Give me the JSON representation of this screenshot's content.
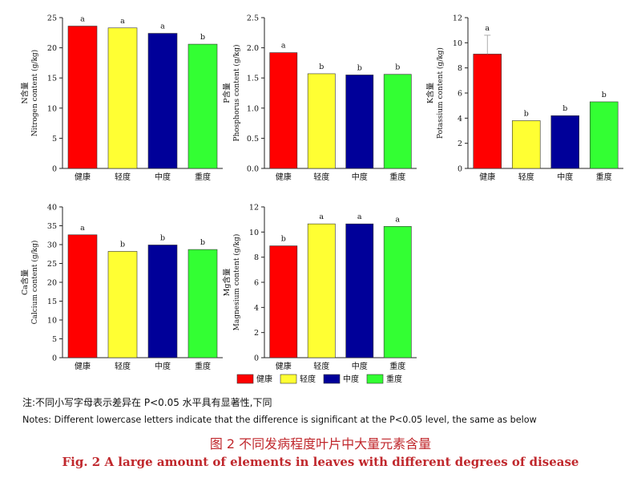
{
  "chart_data": [
    {
      "type": "bar",
      "ylabel": "N含量",
      "ylabel_en": "Nitrogen content (g/kg)",
      "categories": [
        "健康",
        "轻度",
        "中度",
        "重度"
      ],
      "values": [
        23.6,
        23.3,
        22.4,
        20.6
      ],
      "sig_letters": [
        "a",
        "a",
        "a",
        "b"
      ],
      "ylim": [
        0,
        25
      ],
      "yticks": [
        0,
        5,
        10,
        15,
        20,
        25
      ],
      "error_bars": [
        0,
        0,
        0,
        0
      ]
    },
    {
      "type": "bar",
      "ylabel": "P含量",
      "ylabel_en": "Phosphorus content (g/kg)",
      "categories": [
        "健康",
        "轻度",
        "中度",
        "重度"
      ],
      "values": [
        1.92,
        1.57,
        1.55,
        1.56
      ],
      "sig_letters": [
        "a",
        "b",
        "b",
        "b"
      ],
      "ylim": [
        0,
        2.5
      ],
      "yticks": [
        0.0,
        0.5,
        1.0,
        1.5,
        2.0,
        2.5
      ],
      "error_bars": [
        0,
        0,
        0,
        0
      ]
    },
    {
      "type": "bar",
      "ylabel": "K含量",
      "ylabel_en": "Potassium content (g/kg)",
      "categories": [
        "健康",
        "轻度",
        "中度",
        "重度"
      ],
      "values": [
        9.1,
        3.8,
        4.2,
        5.3
      ],
      "sig_letters": [
        "a",
        "b",
        "b",
        "b"
      ],
      "ylim": [
        0,
        12
      ],
      "yticks": [
        0,
        2,
        4,
        6,
        8,
        10,
        12
      ],
      "error_bars": [
        1.5,
        0,
        0,
        0
      ]
    },
    {
      "type": "bar",
      "ylabel": "Ca含量",
      "ylabel_en": "Calcium content (g/kg)",
      "categories": [
        "健康",
        "轻度",
        "中度",
        "重度"
      ],
      "values": [
        32.6,
        28.2,
        29.9,
        28.7
      ],
      "sig_letters": [
        "a",
        "b",
        "b",
        "b"
      ],
      "ylim": [
        0,
        40
      ],
      "yticks": [
        0,
        5,
        10,
        15,
        20,
        25,
        30,
        35,
        40
      ],
      "error_bars": [
        0,
        0,
        0,
        0
      ]
    },
    {
      "type": "bar",
      "ylabel": "Mg含量",
      "ylabel_en": "Magnesium content (g/kg)",
      "categories": [
        "健康",
        "轻度",
        "中度",
        "重度"
      ],
      "values": [
        8.9,
        10.65,
        10.65,
        10.45
      ],
      "sig_letters": [
        "b",
        "a",
        "a",
        "a"
      ],
      "ylim": [
        0,
        12
      ],
      "yticks": [
        0,
        2,
        4,
        6,
        8,
        10,
        12
      ],
      "error_bars": [
        0,
        0,
        0,
        0
      ]
    }
  ],
  "series_colors": [
    "#ff0000",
    "#ffff33",
    "#000099",
    "#33ff33"
  ],
  "legend": {
    "placement": "bottom-center",
    "labels": [
      "健康",
      "轻度",
      "中度",
      "重度"
    ]
  },
  "notes": {
    "cn": "注:不同小写字母表示差异在 P<0.05 水平具有显著性,下同",
    "en": "Notes: Different lowercase letters indicate that the difference is significant at the P<0.05 level, the same as below"
  },
  "caption": {
    "cn": "图 2 不同发病程度叶片中大量元素含量",
    "en": "Fig. 2 A large amount of elements in leaves with different degrees of disease"
  }
}
